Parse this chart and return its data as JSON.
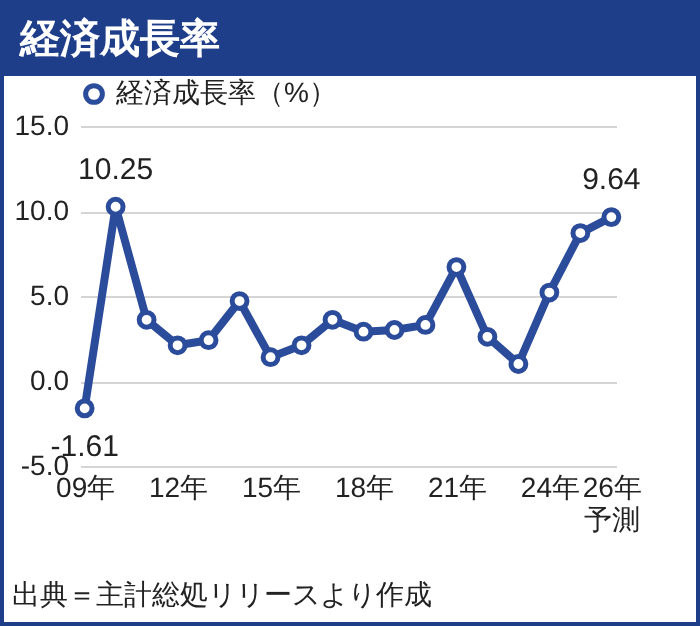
{
  "chart_data": {
    "type": "line",
    "title": "経済成長率",
    "categories": [
      "09年",
      null,
      null,
      "12年",
      null,
      null,
      "15年",
      null,
      null,
      "18年",
      null,
      null,
      "21年",
      null,
      null,
      "24年",
      null,
      "26年予測"
    ],
    "series": [
      {
        "name": "経済成長率（%）",
        "color": "#2b4b9b",
        "values": [
          -1.61,
          10.25,
          3.6,
          2.1,
          2.4,
          4.7,
          1.4,
          2.1,
          3.6,
          2.9,
          3.0,
          3.3,
          6.7,
          2.6,
          1.0,
          5.2,
          8.7,
          9.64
        ],
        "value_labels": [
          "-1.61",
          "10.25",
          null,
          null,
          null,
          null,
          null,
          null,
          null,
          null,
          null,
          null,
          null,
          null,
          null,
          null,
          null,
          "9.64"
        ]
      }
    ],
    "ylim": [
      -5,
      15
    ],
    "yticks": [
      {
        "value": -5,
        "label": "-5.0"
      },
      {
        "value": 0,
        "label": "0.0"
      },
      {
        "value": 5,
        "label": "5.0"
      },
      {
        "value": 10,
        "label": "10.0"
      },
      {
        "value": 15,
        "label": "15.0"
      }
    ],
    "grid": "y",
    "legend": "top",
    "marker": "circle",
    "line_style": "solid",
    "annotations": [
      "出典＝主計総処リリースより作成"
    ]
  }
}
